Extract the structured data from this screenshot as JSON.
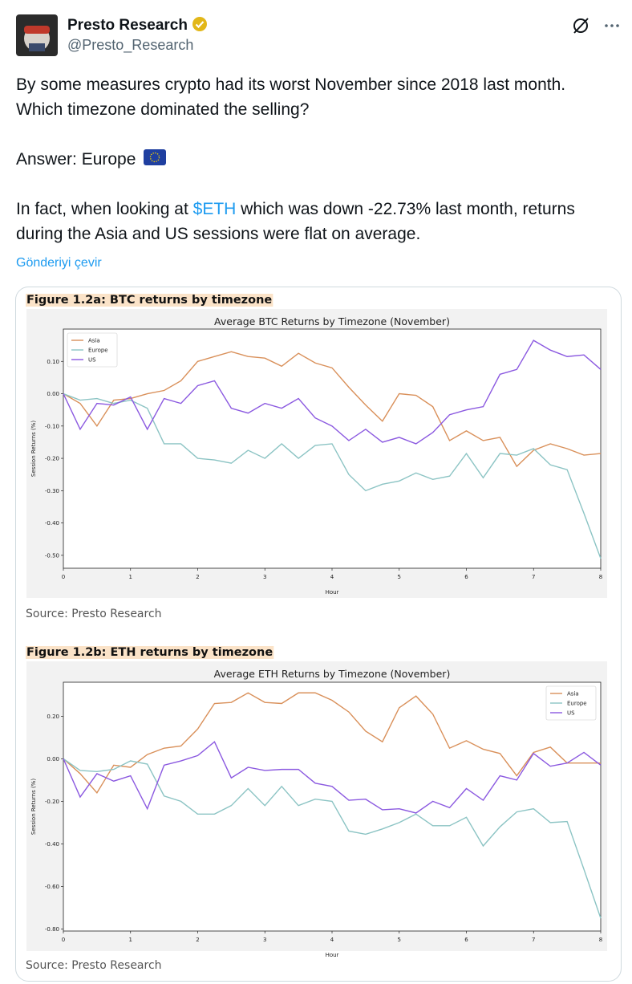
{
  "author": {
    "name": "Presto Research",
    "handle": "@Presto_Research"
  },
  "paragraphs": [
    [
      "By some measures crypto had its worst November since 2018 last month. Which timezone dominated the selling?"
    ],
    [
      "Answer: Europe"
    ],
    [
      "In fact, when looking at ",
      "$ETH",
      " which was down -22.73% last month, returns during the Asia and US sessions were flat on average."
    ]
  ],
  "translate": "Gönderiyi çevir",
  "figures": [
    {
      "caption": "Figure 1.2a: BTC returns by timezone",
      "source": "Source: Presto Research"
    },
    {
      "caption": "Figure 1.2b: ETH returns by timezone",
      "source": "Source: Presto Research"
    }
  ],
  "chart_data": [
    {
      "type": "line",
      "title": "Average BTC Returns by Timezone (November)",
      "xlabel": "Hour",
      "ylabel": "Session Returns (%)",
      "x": [
        0,
        0.25,
        0.5,
        0.75,
        1,
        1.25,
        1.5,
        1.75,
        2,
        2.25,
        2.5,
        2.75,
        3,
        3.25,
        3.5,
        3.75,
        4,
        4.25,
        4.5,
        4.75,
        5,
        5.25,
        5.5,
        5.75,
        6,
        6.25,
        6.5,
        6.75,
        7,
        7.25,
        7.5,
        7.75,
        8
      ],
      "series": [
        {
          "name": "Asia",
          "color": "#d9905a",
          "values": [
            0,
            -0.03,
            -0.1,
            -0.02,
            -0.015,
            0,
            0.01,
            0.04,
            0.1,
            0.115,
            0.13,
            0.115,
            0.11,
            0.085,
            0.125,
            0.095,
            0.08,
            0.02,
            -0.035,
            -0.085,
            0,
            -0.005,
            -0.04,
            -0.145,
            -0.115,
            -0.145,
            -0.135,
            -0.225,
            -0.175,
            -0.155,
            -0.17,
            -0.19,
            -0.185
          ]
        },
        {
          "name": "Europe",
          "color": "#8cc4c4",
          "values": [
            0,
            -0.02,
            -0.015,
            -0.03,
            -0.02,
            -0.045,
            -0.155,
            -0.155,
            -0.2,
            -0.205,
            -0.215,
            -0.175,
            -0.2,
            -0.155,
            -0.2,
            -0.16,
            -0.155,
            -0.25,
            -0.3,
            -0.28,
            -0.27,
            -0.245,
            -0.265,
            -0.255,
            -0.185,
            -0.26,
            -0.185,
            -0.19,
            -0.17,
            -0.22,
            -0.235,
            -0.37,
            -0.51
          ]
        },
        {
          "name": "US",
          "color": "#8b59e0",
          "values": [
            0,
            -0.11,
            -0.03,
            -0.035,
            -0.01,
            -0.11,
            -0.015,
            -0.03,
            0.025,
            0.04,
            -0.045,
            -0.06,
            -0.03,
            -0.045,
            -0.015,
            -0.075,
            -0.1,
            -0.145,
            -0.11,
            -0.15,
            -0.135,
            -0.155,
            -0.12,
            -0.065,
            -0.05,
            -0.04,
            0.06,
            0.075,
            0.165,
            0.135,
            0.115,
            0.12,
            0.075
          ]
        }
      ],
      "xlim": [
        0,
        8
      ],
      "xticks": [
        0,
        1,
        2,
        3,
        4,
        5,
        6,
        7,
        8
      ],
      "ylim": [
        -0.54,
        0.2
      ],
      "yticks": [
        {
          "value": 0.1,
          "label": "0.10"
        },
        {
          "value": 0,
          "label": "0.00"
        },
        {
          "value": -0.1,
          "label": "-0.10"
        },
        {
          "value": -0.2,
          "label": "-0.20"
        },
        {
          "value": -0.3,
          "label": "-0.30"
        },
        {
          "value": -0.4,
          "label": "-0.40"
        },
        {
          "value": -0.5,
          "label": "-0.50"
        }
      ],
      "grid": false,
      "legend": "upper left"
    },
    {
      "type": "line",
      "title": "Average ETH Returns by Timezone (November)",
      "xlabel": "Hour",
      "ylabel": "Session Returns (%)",
      "x": [
        0,
        0.25,
        0.5,
        0.75,
        1,
        1.25,
        1.5,
        1.75,
        2,
        2.25,
        2.5,
        2.75,
        3,
        3.25,
        3.5,
        3.75,
        4,
        4.25,
        4.5,
        4.75,
        5,
        5.25,
        5.5,
        5.75,
        6,
        6.25,
        6.5,
        6.75,
        7,
        7.25,
        7.5,
        7.75,
        8
      ],
      "series": [
        {
          "name": "Asia",
          "color": "#d9905a",
          "values": [
            0,
            -0.07,
            -0.16,
            -0.03,
            -0.04,
            0.02,
            0.05,
            0.06,
            0.14,
            0.26,
            0.265,
            0.31,
            0.265,
            0.26,
            0.31,
            0.31,
            0.275,
            0.22,
            0.13,
            0.08,
            0.24,
            0.295,
            0.21,
            0.05,
            0.085,
            0.045,
            0.025,
            -0.08,
            0.03,
            0.055,
            -0.02,
            -0.02,
            -0.02
          ]
        },
        {
          "name": "Europe",
          "color": "#8cc4c4",
          "values": [
            0,
            -0.055,
            -0.06,
            -0.05,
            -0.01,
            -0.025,
            -0.175,
            -0.2,
            -0.26,
            -0.26,
            -0.22,
            -0.14,
            -0.22,
            -0.13,
            -0.22,
            -0.19,
            -0.2,
            -0.34,
            -0.355,
            -0.33,
            -0.3,
            -0.26,
            -0.315,
            -0.315,
            -0.275,
            -0.41,
            -0.32,
            -0.25,
            -0.235,
            -0.3,
            -0.295,
            -0.52,
            -0.75
          ]
        },
        {
          "name": "US",
          "color": "#8b59e0",
          "values": [
            0,
            -0.18,
            -0.07,
            -0.105,
            -0.08,
            -0.235,
            -0.03,
            -0.01,
            0.015,
            0.08,
            -0.09,
            -0.04,
            -0.055,
            -0.05,
            -0.05,
            -0.115,
            -0.13,
            -0.195,
            -0.19,
            -0.24,
            -0.235,
            -0.255,
            -0.2,
            -0.23,
            -0.14,
            -0.195,
            -0.08,
            -0.1,
            0.025,
            -0.035,
            -0.02,
            0.03,
            -0.03
          ]
        }
      ],
      "xlim": [
        0,
        8
      ],
      "xticks": [
        0,
        1,
        2,
        3,
        4,
        5,
        6,
        7,
        8
      ],
      "ylim": [
        -0.81,
        0.36
      ],
      "yticks": [
        {
          "value": 0.2,
          "label": "0.20"
        },
        {
          "value": 0,
          "label": "0.00"
        },
        {
          "value": -0.2,
          "label": "-0.20"
        },
        {
          "value": -0.4,
          "label": "-0.40"
        },
        {
          "value": -0.6,
          "label": "-0.60"
        },
        {
          "value": -0.8,
          "label": "-0.80"
        }
      ],
      "grid": false,
      "legend": "upper right"
    }
  ]
}
